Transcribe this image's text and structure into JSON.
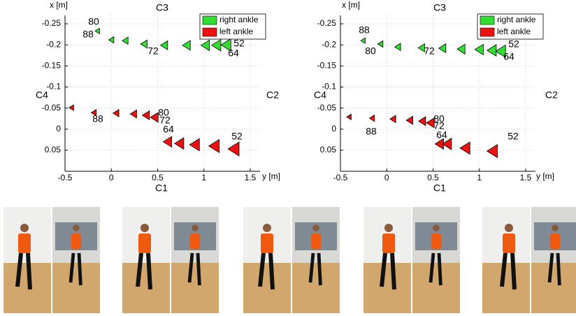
{
  "chart_data": [
    {
      "type": "scatter",
      "x_label": "y [m]",
      "y_label": "x [m]",
      "camera_labels": [
        "C1",
        "C2",
        "C3",
        "C4"
      ],
      "annotations": [
        "80",
        "88",
        "72",
        "52",
        "64",
        "80",
        "72",
        "64",
        "88",
        "52"
      ],
      "xlim": [
        -0.5,
        1.5
      ],
      "ylim": [
        -0.27,
        0.1
      ],
      "y_inverted": true,
      "xticks": [
        -0.5,
        0,
        0.5,
        1,
        1.5
      ],
      "yticks": [
        -0.25,
        -0.2,
        -0.15,
        -0.1,
        -0.05,
        0,
        0.05
      ],
      "grid": true,
      "legend": "upper right",
      "marker": "triangle-left",
      "series": [
        {
          "name": "right ankle",
          "color": "#33dd33",
          "x": [
            -0.145,
            0.006,
            0.157,
            0.36,
            0.579,
            0.821,
            1.025,
            1.145,
            1.251
          ],
          "values": [
            -0.233,
            -0.212,
            -0.21,
            -0.202,
            -0.199,
            -0.199,
            -0.199,
            -0.199,
            -0.2
          ]
        },
        {
          "name": "left ankle",
          "color": "#ee1111",
          "x": [
            -0.425,
            -0.183,
            0.058,
            0.247,
            0.383,
            0.474,
            0.617,
            0.745,
            0.911,
            1.123,
            1.334
          ],
          "values": [
            -0.051,
            -0.039,
            -0.038,
            -0.036,
            -0.033,
            -0.028,
            0.03,
            0.034,
            0.037,
            0.04,
            0.047
          ]
        }
      ]
    },
    {
      "type": "scatter",
      "x_label": "y [m]",
      "y_label": "x [m]",
      "camera_labels": [
        "C1",
        "C2",
        "C3",
        "C4"
      ],
      "annotations": [
        "88",
        "80",
        "72",
        "52",
        "64",
        "80",
        "72",
        "64",
        "88",
        "52"
      ],
      "xlim": [
        -0.5,
        1.5
      ],
      "ylim": [
        -0.27,
        0.1
      ],
      "y_inverted": true,
      "xticks": [
        -0.5,
        0,
        0.5,
        1,
        1.5
      ],
      "yticks": [
        -0.25,
        -0.2,
        -0.15,
        -0.1,
        -0.05,
        0,
        0.05
      ],
      "grid": true,
      "legend": "upper right",
      "marker": "triangle-left",
      "series": [
        {
          "name": "right ankle",
          "color": "#33dd33",
          "x": [
            -0.251,
            -0.062,
            0.126,
            0.383,
            0.609,
            0.813,
            1.009,
            1.145,
            1.243
          ],
          "values": [
            -0.21,
            -0.202,
            -0.195,
            -0.193,
            -0.192,
            -0.19,
            -0.189,
            -0.187,
            -0.185
          ]
        },
        {
          "name": "left ankle",
          "color": "#ee1111",
          "x": [
            -0.402,
            -0.153,
            0.074,
            0.255,
            0.391,
            0.481,
            0.579,
            0.662,
            0.858,
            1.153
          ],
          "values": [
            -0.029,
            -0.026,
            -0.024,
            -0.021,
            -0.019,
            -0.015,
            0.035,
            0.035,
            0.045,
            0.052
          ]
        }
      ]
    }
  ]
}
